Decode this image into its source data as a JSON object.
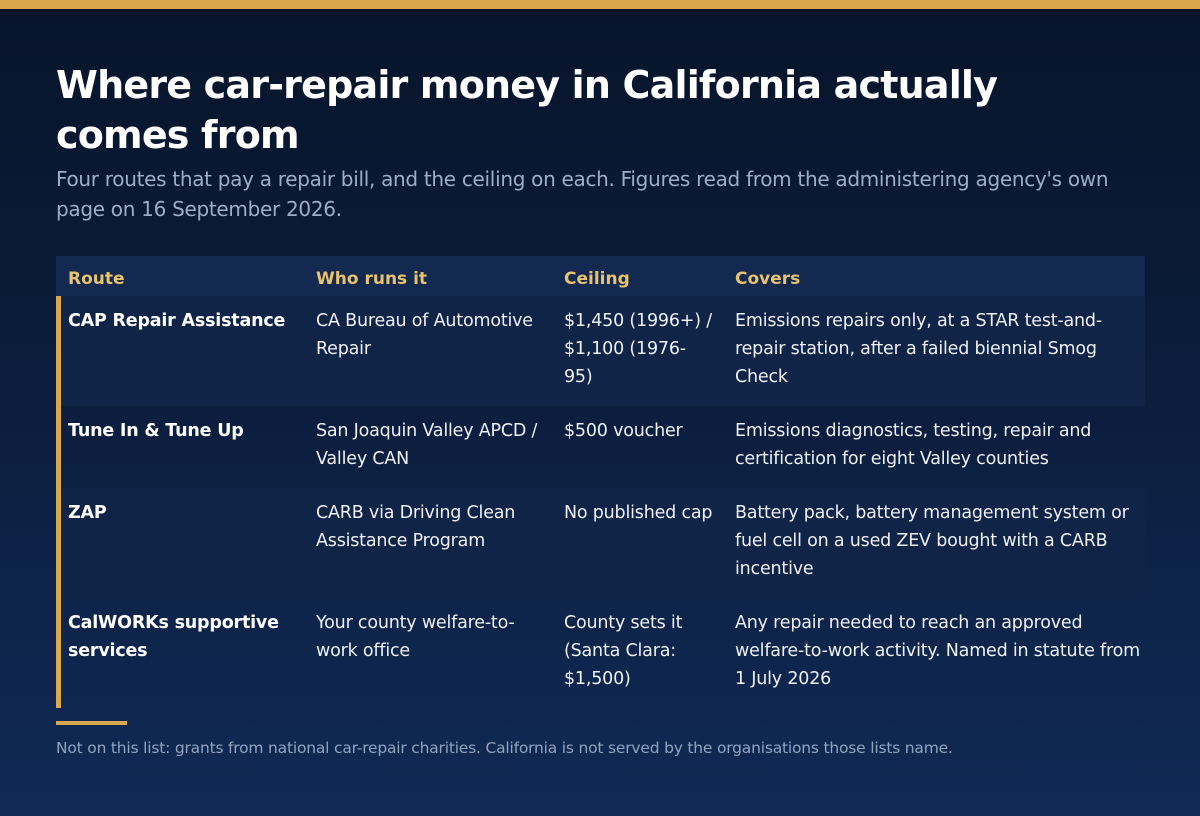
{
  "title": "Where car-repair money in California actually comes from",
  "subtitle": "Four routes that pay a repair bill, and the ceiling on each. Figures read from the administering agency's own page on 16 September 2026.",
  "table": {
    "headers": [
      "Route",
      "Who runs it",
      "Ceiling",
      "Covers"
    ],
    "rows": [
      {
        "route": "CAP Repair Assistance",
        "who": "CA Bureau of Automotive Repair",
        "ceiling": "$1,450 (1996+) / $1,100 (1976-95)",
        "covers": "Emissions repairs only, at a STAR test-and-repair station, after a failed biennial Smog Check"
      },
      {
        "route": "Tune In & Tune Up",
        "who": "San Joaquin Valley APCD / Valley CAN",
        "ceiling": "$500 voucher",
        "covers": "Emissions diagnostics, testing, repair and certification for eight Valley counties"
      },
      {
        "route": "ZAP",
        "who": "CARB via Driving Clean Assistance Program",
        "ceiling": "No published cap",
        "covers": "Battery pack, battery management system or fuel cell on a used ZEV bought with a CARB incentive"
      },
      {
        "route": "CalWORKs supportive services",
        "who": "Your county welfare-to-work office",
        "ceiling": "County sets it (Santa Clara: $1,500)",
        "covers": "Any repair needed to reach an approved welfare-to-work activity. Named in statute from 1 July 2026"
      }
    ]
  },
  "footnote": "Not on this list: grants from national car-repair charities. California is not served by the organisations those lists name.",
  "colors": {
    "accent": "#d9a84e",
    "header_text": "#e8c26d",
    "background": "#0c1f40"
  }
}
